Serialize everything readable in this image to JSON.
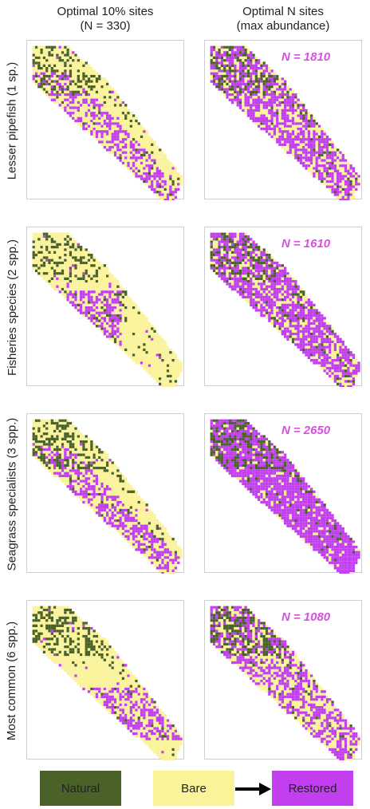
{
  "columns": [
    {
      "line1": "Optimal 10% sites",
      "line2": "(N = 330)"
    },
    {
      "line1": "Optimal N sites",
      "line2": "(max abundance)"
    }
  ],
  "rows": [
    {
      "label": "Lesser pipefish (1 sp.)",
      "n_symbol": "N",
      "n_text": "= 1810",
      "restored_fraction": 0.62,
      "restored_zone": "diffuse",
      "natural_left": 0.3,
      "natural_right": 0.16
    },
    {
      "label": "Fisheries species (2 spp.)",
      "n_symbol": "N",
      "n_text": "= 1610",
      "restored_fraction": 0.68,
      "restored_zone": "middle",
      "natural_left": 0.3,
      "natural_right": 0.1
    },
    {
      "label": "Seagrass specialists (3 spp.)",
      "n_symbol": "N",
      "n_text": "= 2650",
      "restored_fraction": 0.86,
      "restored_zone": "diffuse",
      "natural_left": 0.38,
      "natural_right": 0.2
    },
    {
      "label": "Most common (6 spp.)",
      "n_symbol": "N",
      "n_text": "= 1080",
      "restored_fraction": 0.55,
      "restored_zone": "center",
      "natural_left": 0.36,
      "natural_right": 0.2
    }
  ],
  "legend": {
    "natural": {
      "label": "Natural",
      "color": "#4a6128"
    },
    "bare": {
      "label": "Bare",
      "color": "#faf39a"
    },
    "restored": {
      "label": "Restored",
      "color": "#c23ff0"
    }
  },
  "colors": {
    "natural": "#4a6128",
    "bare": "#faf39a",
    "restored": "#c23ff0",
    "n_label": "#d94fe0"
  }
}
